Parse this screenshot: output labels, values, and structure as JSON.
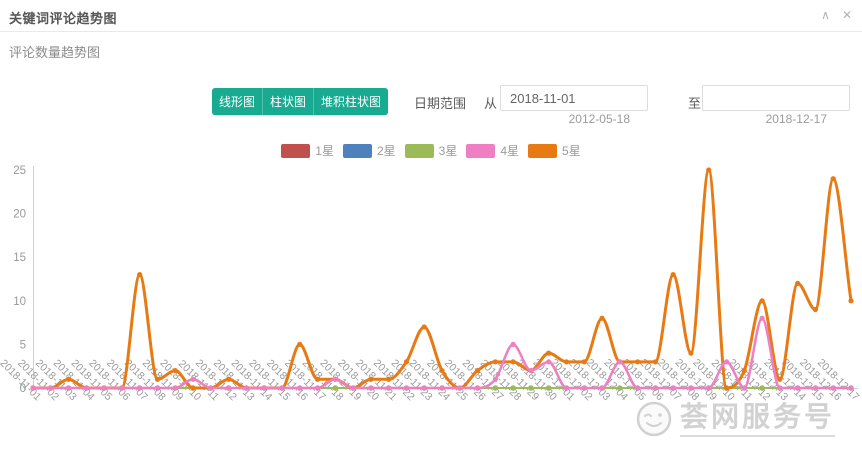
{
  "panel": {
    "title": "关键词评论趋势图",
    "collapse_icon": "∧",
    "close_icon": "✕"
  },
  "subtitle": "评论数量趋势图",
  "controls": {
    "chart_type_buttons": [
      "线形图",
      "柱状图",
      "堆积柱状图"
    ],
    "date_range_label": "日期范围",
    "from_label": "从",
    "from_value": "2018-11-01",
    "from_hint": "2012-05-18",
    "to_label": "至",
    "to_value": "",
    "to_hint": "2018-12-17"
  },
  "watermark": {
    "text": "荟网服务号"
  },
  "colors": {
    "button_teal": "#19ab91",
    "star1": "#c0504d",
    "star2": "#4f81bd",
    "star3": "#9bbb59",
    "star4": "#ee7fc3",
    "star5": "#e87a14",
    "axis_line": "#ccd2d9",
    "axis_text": "#999999"
  },
  "chart_data": {
    "type": "line",
    "smooth": true,
    "grid": false,
    "legend_position": "top-center",
    "ylim": [
      0,
      25
    ],
    "yticks": [
      0,
      5,
      10,
      15,
      20,
      25
    ],
    "x": [
      "2018-11-01",
      "2018-11-02",
      "2018-11-03",
      "2018-11-04",
      "2018-11-05",
      "2018-11-06",
      "2018-11-07",
      "2018-11-08",
      "2018-11-09",
      "2018-11-10",
      "2018-11-11",
      "2018-11-12",
      "2018-11-13",
      "2018-11-14",
      "2018-11-15",
      "2018-11-16",
      "2018-11-17",
      "2018-11-18",
      "2018-11-19",
      "2018-11-20",
      "2018-11-21",
      "2018-11-22",
      "2018-11-23",
      "2018-11-24",
      "2018-11-25",
      "2018-11-26",
      "2018-11-27",
      "2018-11-28",
      "2018-11-29",
      "2018-11-30",
      "2018-12-01",
      "2018-12-02",
      "2018-12-03",
      "2018-12-04",
      "2018-12-05",
      "2018-12-06",
      "2018-12-07",
      "2018-12-08",
      "2018-12-09",
      "2018-12-10",
      "2018-12-11",
      "2018-12-12",
      "2018-12-13",
      "2018-12-14",
      "2018-12-15",
      "2018-12-16",
      "2018-12-17"
    ],
    "series": [
      {
        "name": "1星",
        "color": "#c0504d",
        "values": [
          0,
          0,
          0,
          0,
          0,
          0,
          0,
          0,
          0,
          0,
          0,
          0,
          0,
          0,
          0,
          0,
          0,
          0,
          0,
          0,
          0,
          0,
          0,
          0,
          0,
          0,
          0,
          0,
          0,
          0,
          0,
          0,
          0,
          0,
          0,
          0,
          0,
          0,
          0,
          0,
          0,
          0,
          0,
          0,
          0,
          0,
          0
        ]
      },
      {
        "name": "2星",
        "color": "#4f81bd",
        "values": [
          0,
          0,
          0,
          0,
          0,
          0,
          0,
          0,
          0,
          0,
          0,
          0,
          0,
          0,
          0,
          0,
          0,
          0,
          0,
          0,
          0,
          0,
          0,
          0,
          0,
          0,
          0,
          0,
          0,
          0,
          0,
          0,
          0,
          0,
          0,
          0,
          0,
          0,
          0,
          0,
          0,
          0,
          0,
          0,
          0,
          0,
          0
        ]
      },
      {
        "name": "3星",
        "color": "#9bbb59",
        "values": [
          0,
          0,
          0,
          0,
          0,
          0,
          0,
          0,
          0,
          0,
          0,
          0,
          0,
          0,
          0,
          0,
          0,
          0,
          0,
          0,
          0,
          0,
          0,
          0,
          0,
          0,
          0,
          0,
          0,
          0,
          0,
          0,
          0,
          0,
          0,
          0,
          0,
          0,
          0,
          0,
          0,
          0,
          0,
          0,
          0,
          0,
          0
        ]
      },
      {
        "name": "5星",
        "color": "#e87a14",
        "values": [
          0,
          0,
          1,
          0,
          0,
          0,
          13,
          1,
          2,
          0,
          0,
          1,
          0,
          0,
          0,
          5,
          1,
          1,
          0,
          1,
          1,
          3,
          7,
          2,
          0,
          2,
          3,
          3,
          2,
          4,
          3,
          3,
          8,
          3,
          3,
          3,
          13,
          4,
          25,
          0,
          2,
          10,
          1,
          12,
          9,
          24,
          10
        ]
      },
      {
        "name": "4星",
        "color": "#ee7fc3",
        "values": [
          0,
          0,
          0,
          0,
          0,
          0,
          0,
          0,
          0,
          1,
          0,
          0,
          0,
          0,
          0,
          0,
          0,
          1,
          0,
          0,
          0,
          0,
          0,
          0,
          0,
          0,
          1,
          5,
          2,
          3,
          0,
          0,
          0,
          3,
          0,
          0,
          0,
          0,
          0,
          3,
          0,
          8,
          0,
          0,
          0,
          0,
          0
        ]
      }
    ],
    "legend_order": [
      "1星",
      "2星",
      "3星",
      "4星",
      "5星"
    ]
  }
}
